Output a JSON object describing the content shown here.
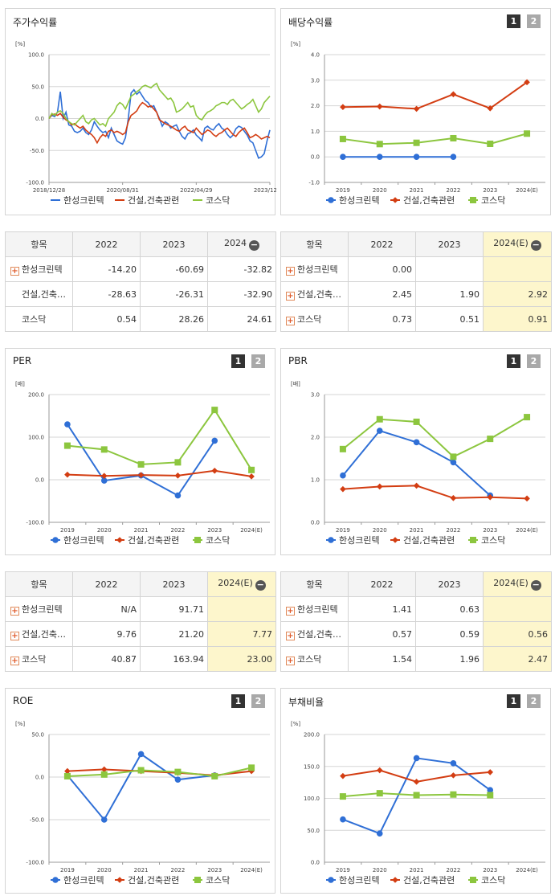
{
  "colors": {
    "series1": "#2f6fd6",
    "series2": "#d33d12",
    "series3": "#8cc63e",
    "grid": "#d6d6d6"
  },
  "legend": [
    "한성크린텍",
    "건설,건축관련",
    "코스닥"
  ],
  "pager": {
    "p1": "1",
    "p2": "2"
  },
  "panels": {
    "stock": {
      "title": "주가수익률",
      "unit": "[%]"
    },
    "div": {
      "title": "배당수익률",
      "unit": "[%]"
    },
    "per": {
      "title": "PER",
      "unit": "[배]"
    },
    "pbr": {
      "title": "PBR",
      "unit": "[배]"
    },
    "roe": {
      "title": "ROE",
      "unit": "[%]"
    },
    "debt": {
      "title": "부채비율",
      "unit": "[%]"
    }
  },
  "tables": {
    "stock": {
      "headers": [
        "항목",
        "2022",
        "2023",
        "2024"
      ],
      "rows": [
        {
          "name": "한성크린텍",
          "v": [
            "-14.20",
            "-60.69",
            "-32.82"
          ]
        },
        {
          "name": "건설,건축…",
          "v": [
            "-28.63",
            "-26.31",
            "-32.90"
          ]
        },
        {
          "name": "코스닥",
          "v": [
            "0.54",
            "28.26",
            "24.61"
          ]
        }
      ]
    },
    "div": {
      "headers": [
        "항목",
        "2022",
        "2023",
        "2024(E)"
      ],
      "rows": [
        {
          "name": "한성크린텍",
          "v": [
            "0.00",
            "",
            ""
          ]
        },
        {
          "name": "건설,건축…",
          "v": [
            "2.45",
            "1.90",
            "2.92"
          ]
        },
        {
          "name": "코스닥",
          "v": [
            "0.73",
            "0.51",
            "0.91"
          ]
        }
      ]
    },
    "per": {
      "headers": [
        "항목",
        "2022",
        "2023",
        "2024(E)"
      ],
      "rows": [
        {
          "name": "한성크린텍",
          "v": [
            "N/A",
            "91.71",
            ""
          ]
        },
        {
          "name": "건설,건축…",
          "v": [
            "9.76",
            "21.20",
            "7.77"
          ]
        },
        {
          "name": "코스닥",
          "v": [
            "40.87",
            "163.94",
            "23.00"
          ]
        }
      ]
    },
    "pbr": {
      "headers": [
        "항목",
        "2022",
        "2023",
        "2024(E)"
      ],
      "rows": [
        {
          "name": "한성크린텍",
          "v": [
            "1.41",
            "0.63",
            ""
          ]
        },
        {
          "name": "건설,건축…",
          "v": [
            "0.57",
            "0.59",
            "0.56"
          ]
        },
        {
          "name": "코스닥",
          "v": [
            "1.54",
            "1.96",
            "2.47"
          ]
        }
      ]
    }
  },
  "chart_data": [
    {
      "id": "stock",
      "type": "line",
      "ylim": [
        -100,
        100
      ],
      "yticks": [
        "100.0",
        "50.0",
        "0.0",
        "-50.0",
        "-100.0"
      ],
      "xticks": [
        "2018/12/28",
        "2020/08/31",
        "2022/04/29",
        "2023/12/28"
      ],
      "series": [
        {
          "name": "한성크린텍",
          "values": [
            0,
            5,
            3,
            10,
            42,
            0,
            10,
            -10,
            -12,
            -20,
            -22,
            -20,
            -15,
            -22,
            -25,
            -18,
            -5,
            -12,
            -18,
            -22,
            -20,
            -30,
            -15,
            -25,
            -35,
            -38,
            -40,
            -30,
            0,
            40,
            45,
            38,
            42,
            35,
            28,
            25,
            18,
            20,
            10,
            0,
            -12,
            -5,
            -8,
            -15,
            -12,
            -10,
            -20,
            -28,
            -32,
            -24,
            -22,
            -18,
            -26,
            -30,
            -35,
            -15,
            -12,
            -16,
            -18,
            -12,
            -8,
            -15,
            -18,
            -25,
            -30,
            -26,
            -16,
            -12,
            -14,
            -20,
            -26,
            -35,
            -38,
            -50,
            -62,
            -60,
            -55,
            -35,
            -18
          ]
        },
        {
          "name": "건설,건축관련",
          "values": [
            0,
            6,
            7,
            5,
            8,
            2,
            -2,
            -5,
            -10,
            -8,
            -12,
            -15,
            -12,
            -18,
            -22,
            -25,
            -30,
            -38,
            -30,
            -25,
            -28,
            -20,
            -18,
            -22,
            -20,
            -22,
            -25,
            -22,
            -5,
            5,
            8,
            12,
            20,
            25,
            22,
            18,
            20,
            15,
            10,
            -2,
            -5,
            -8,
            -10,
            -12,
            -15,
            -18,
            -20,
            -15,
            -12,
            -18,
            -20,
            -22,
            -15,
            -20,
            -25,
            -22,
            -18,
            -20,
            -25,
            -28,
            -24,
            -22,
            -18,
            -15,
            -20,
            -25,
            -28,
            -22,
            -18,
            -15,
            -22,
            -30,
            -28,
            -25,
            -28,
            -32,
            -30,
            -28,
            -30
          ]
        },
        {
          "name": "코스닥",
          "values": [
            0,
            8,
            5,
            10,
            12,
            8,
            0,
            -5,
            -8,
            -10,
            -5,
            0,
            5,
            -5,
            -8,
            -2,
            0,
            -5,
            -10,
            -8,
            -12,
            0,
            5,
            10,
            20,
            25,
            22,
            15,
            25,
            35,
            38,
            42,
            45,
            50,
            52,
            50,
            48,
            52,
            55,
            45,
            40,
            35,
            30,
            32,
            25,
            10,
            12,
            15,
            20,
            25,
            18,
            20,
            5,
            0,
            -2,
            5,
            10,
            12,
            15,
            20,
            22,
            25,
            25,
            22,
            28,
            30,
            25,
            20,
            15,
            18,
            22,
            25,
            30,
            20,
            10,
            15,
            25,
            30,
            35
          ]
        }
      ]
    },
    {
      "id": "div",
      "type": "line",
      "ylim": [
        -1,
        4
      ],
      "yticks": [
        "4.0",
        "3.0",
        "2.0",
        "1.0",
        "0.0",
        "-1.0"
      ],
      "categories": [
        "2019",
        "2020",
        "2021",
        "2022",
        "2023",
        "2024(E)"
      ],
      "series": [
        {
          "name": "한성크린텍",
          "values": [
            0.0,
            0.0,
            0.0,
            0.0,
            null,
            null
          ]
        },
        {
          "name": "건설,건축관련",
          "values": [
            1.95,
            1.97,
            1.88,
            2.45,
            1.9,
            2.92
          ]
        },
        {
          "name": "코스닥",
          "values": [
            0.7,
            0.5,
            0.55,
            0.73,
            0.51,
            0.91
          ]
        }
      ]
    },
    {
      "id": "per",
      "type": "line",
      "ylim": [
        -100,
        200
      ],
      "yticks": [
        "200.0",
        "100.0",
        "0.0",
        "-100.0"
      ],
      "categories": [
        "2019",
        "2020",
        "2021",
        "2022",
        "2023",
        "2024(E)"
      ],
      "series": [
        {
          "name": "한성크린텍",
          "values": [
            130,
            -2,
            10,
            -37,
            91.71,
            null
          ]
        },
        {
          "name": "건설,건축관련",
          "values": [
            12,
            9,
            11,
            9.76,
            21.2,
            7.77
          ]
        },
        {
          "name": "코스닥",
          "values": [
            80,
            71,
            36,
            40.87,
            163.94,
            23.0
          ]
        }
      ]
    },
    {
      "id": "pbr",
      "type": "line",
      "ylim": [
        0,
        3
      ],
      "yticks": [
        "3.0",
        "2.0",
        "1.0",
        "0.0"
      ],
      "categories": [
        "2019",
        "2020",
        "2021",
        "2022",
        "2023",
        "2024(E)"
      ],
      "series": [
        {
          "name": "한성크린텍",
          "values": [
            1.1,
            2.15,
            1.88,
            1.41,
            0.63,
            null
          ]
        },
        {
          "name": "건설,건축관련",
          "values": [
            0.78,
            0.84,
            0.86,
            0.57,
            0.59,
            0.56
          ]
        },
        {
          "name": "코스닥",
          "values": [
            1.72,
            2.42,
            2.36,
            1.54,
            1.96,
            2.47
          ]
        }
      ]
    },
    {
      "id": "roe",
      "type": "line",
      "ylim": [
        -100,
        50
      ],
      "yticks": [
        "50.0",
        "0.0",
        "-50.0",
        "-100.0"
      ],
      "categories": [
        "2019",
        "2020",
        "2021",
        "2022",
        "2023",
        "2024(E)"
      ],
      "series": [
        {
          "name": "한성크린텍",
          "values": [
            2,
            -50,
            27,
            -3,
            2,
            null
          ]
        },
        {
          "name": "건설,건축관련",
          "values": [
            7,
            9,
            7,
            5,
            2,
            7
          ]
        },
        {
          "name": "코스닥",
          "values": [
            1,
            3,
            8,
            6,
            1,
            11
          ]
        }
      ]
    },
    {
      "id": "debt",
      "type": "line",
      "ylim": [
        0,
        200
      ],
      "yticks": [
        "200.0",
        "150.0",
        "100.0",
        "50.0",
        "0.0"
      ],
      "categories": [
        "2019",
        "2020",
        "2021",
        "2022",
        "2023",
        "2024(E)"
      ],
      "series": [
        {
          "name": "한성크린텍",
          "values": [
            67,
            45,
            163,
            155,
            113,
            null
          ]
        },
        {
          "name": "건설,건축관련",
          "values": [
            135,
            144,
            126,
            136,
            141,
            null
          ]
        },
        {
          "name": "코스닥",
          "values": [
            103,
            108,
            105,
            106,
            105,
            null
          ]
        }
      ]
    }
  ]
}
